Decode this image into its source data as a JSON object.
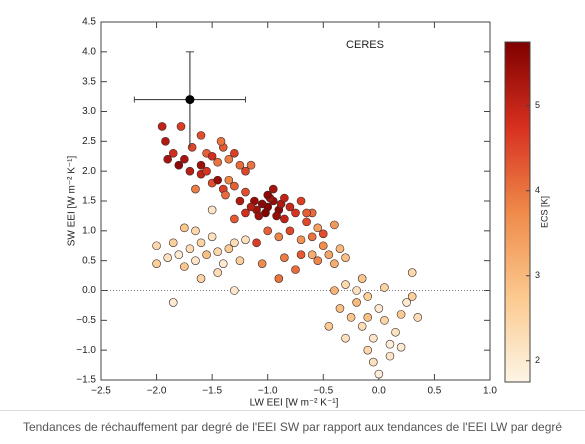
{
  "chart_data": {
    "type": "scatter",
    "title": "CERES",
    "x_label": "LW EEI [W m⁻² K⁻¹]",
    "y_label": "SW EEI [W m⁻² K⁻¹]",
    "colorbar_label": "ECS [K]",
    "caption": "Tendances de réchauffement par degré de l'EEI SW par rapport aux tendances de l'EEI LW par degré",
    "xlim": [
      -2.5,
      1.0
    ],
    "ylim": [
      -1.5,
      4.5
    ],
    "xticks": [
      {
        "value": -2.5,
        "label": "−2.5"
      },
      {
        "value": -2.0,
        "label": "−2.0"
      },
      {
        "value": -1.5,
        "label": "−1.5"
      },
      {
        "value": -1.0,
        "label": "−1.0"
      },
      {
        "value": -0.5,
        "label": "−0.5"
      },
      {
        "value": 0,
        "label": "0.0"
      },
      {
        "value": 0.5,
        "label": "0.5"
      },
      {
        "value": 1.0,
        "label": "1.0"
      }
    ],
    "yticks": [
      {
        "value": -1.5,
        "label": "−1.5"
      },
      {
        "value": -1.0,
        "label": "−1.0"
      },
      {
        "value": -0.5,
        "label": "−0.5"
      },
      {
        "value": 0,
        "label": "0.0"
      },
      {
        "value": 0.5,
        "label": "0.5"
      },
      {
        "value": 1.0,
        "label": "1.0"
      },
      {
        "value": 1.5,
        "label": "1.5"
      },
      {
        "value": 2.0,
        "label": "2.0"
      },
      {
        "value": 2.5,
        "label": "2.5"
      },
      {
        "value": 3.0,
        "label": "3.0"
      },
      {
        "value": 3.5,
        "label": "3.5"
      },
      {
        "value": 4.0,
        "label": "4.0"
      },
      {
        "value": 4.5,
        "label": "4.5"
      }
    ],
    "reference_line": 0,
    "clim": [
      1.75,
      5.75
    ],
    "cticks": [
      2,
      3,
      4,
      5
    ],
    "colormap": [
      "#fdf5e6",
      "#fbc98e",
      "#ef8a4a",
      "#d7301f",
      "#7f0000"
    ],
    "x": [
      -1.95,
      -1.78,
      -1.92,
      -1.85,
      -1.75,
      -1.68,
      -1.6,
      -1.55,
      -1.5,
      -1.45,
      -1.4,
      -1.35,
      -1.3,
      -1.25,
      -1.6,
      -1.5,
      -1.45,
      -1.4,
      -1.35,
      -1.3,
      -1.7,
      -1.8,
      -1.55,
      -1.2,
      -1.15,
      -1.65,
      -1.38,
      -1.9,
      -1.42,
      -1.6,
      -1.05,
      -1.0,
      -0.95,
      -1.1,
      -0.9,
      -1.02,
      -0.98,
      -1.12,
      -0.88,
      -1.0,
      -1.08,
      -0.92,
      -0.85,
      -1.15,
      -0.8,
      -0.75,
      -1.2,
      -1.25,
      -0.7,
      -0.95,
      -1.2,
      -0.65,
      -0.85,
      -1.3,
      -0.6,
      -1.0,
      -0.9,
      -0.8,
      -0.7,
      -0.6,
      -0.55,
      -0.5,
      -0.45,
      -0.7,
      -0.85,
      -0.6,
      -0.5,
      -0.4,
      -1.1,
      -0.75,
      -0.35,
      -0.4,
      -0.55,
      -0.9,
      -1.05,
      -0.65,
      -0.3,
      -2.0,
      -1.9,
      -1.85,
      -1.8,
      -1.75,
      -1.7,
      -1.65,
      -1.6,
      -1.55,
      -1.5,
      -1.45,
      -1.4,
      -1.35,
      -1.3,
      -1.25,
      -1.5,
      -1.65,
      -1.75,
      -1.2,
      -1.6,
      -1.3,
      -1.85,
      -2.0,
      -1.45,
      -0.3,
      -0.2,
      -0.1,
      0.0,
      -0.25,
      -0.15,
      -0.05,
      0.05,
      0.1,
      -0.1,
      0.15,
      0.2,
      0.25,
      0.3,
      -0.05,
      0.0,
      -0.2,
      -0.35,
      -0.4,
      0.35,
      0.1,
      -0.15,
      0.05,
      -0.45,
      0.3,
      -0.3,
      0.2,
      -0.1
    ],
    "values": [
      2.75,
      2.75,
      2.5,
      2.3,
      2.2,
      2.4,
      2.1,
      2.3,
      2.25,
      2.15,
      2.4,
      2.2,
      2.3,
      2.1,
      1.95,
      1.8,
      1.85,
      1.7,
      1.85,
      1.75,
      2.0,
      2.1,
      2.0,
      2.0,
      2.1,
      1.7,
      1.6,
      2.2,
      2.5,
      2.6,
      1.45,
      1.4,
      1.5,
      1.35,
      1.35,
      1.3,
      1.55,
      1.5,
      1.45,
      1.6,
      1.25,
      1.25,
      1.55,
      1.4,
      1.4,
      1.3,
      1.3,
      1.5,
      1.5,
      1.7,
      1.65,
      1.15,
      1.2,
      1.2,
      1.3,
      1.0,
      0.9,
      1.0,
      0.85,
      0.9,
      1.05,
      0.75,
      0.6,
      0.6,
      0.55,
      0.6,
      0.95,
      1.1,
      0.8,
      0.35,
      0.7,
      0.45,
      0.5,
      0.2,
      0.45,
      1.3,
      0.55,
      0.75,
      0.55,
      0.8,
      0.6,
      0.4,
      0.7,
      0.5,
      0.8,
      0.6,
      0.9,
      0.65,
      0.45,
      0.7,
      0.8,
      0.5,
      1.35,
      1.0,
      1.05,
      0.85,
      0.2,
      0.0,
      -0.2,
      0.45,
      0.3,
      0.1,
      0.0,
      -0.1,
      -0.3,
      -0.45,
      -0.6,
      -0.8,
      -0.5,
      -0.9,
      -1.0,
      -0.7,
      -0.4,
      -0.2,
      -0.1,
      -1.2,
      -1.4,
      -0.2,
      -0.3,
      0.0,
      -0.45,
      -1.1,
      0.2,
      0.05,
      -0.6,
      0.3,
      -0.8,
      -0.95,
      -0.45
    ],
    "color_values": [
      5.0,
      4.6,
      5.2,
      4.8,
      5.3,
      4.5,
      5.4,
      4.2,
      4.8,
      4.0,
      4.3,
      3.9,
      4.6,
      4.1,
      5.0,
      4.4,
      5.5,
      4.6,
      3.8,
      4.2,
      5.1,
      5.6,
      4.7,
      4.5,
      4.0,
      3.9,
      4.1,
      5.3,
      4.0,
      4.4,
      5.6,
      5.7,
      5.5,
      5.4,
      5.6,
      5.7,
      5.3,
      5.5,
      5.2,
      5.6,
      5.4,
      5.5,
      5.0,
      5.1,
      4.9,
      4.7,
      4.8,
      5.2,
      4.6,
      5.3,
      4.4,
      4.5,
      5.0,
      4.3,
      4.1,
      4.2,
      3.8,
      4.5,
      3.6,
      4.0,
      3.4,
      3.7,
      3.3,
      4.3,
      3.9,
      3.2,
      4.4,
      3.5,
      4.6,
      4.1,
      3.0,
      3.2,
      3.8,
      4.0,
      3.7,
      4.2,
      2.9,
      2.4,
      2.2,
      2.6,
      2.0,
      2.8,
      2.3,
      2.1,
      2.5,
      2.9,
      2.2,
      2.4,
      2.0,
      2.7,
      2.3,
      2.6,
      2.1,
      2.4,
      2.8,
      2.2,
      2.5,
      2.1,
      2.0,
      2.6,
      2.3,
      2.4,
      2.2,
      2.6,
      2.0,
      2.8,
      2.3,
      2.1,
      2.5,
      1.9,
      2.4,
      2.2,
      2.7,
      2.0,
      2.6,
      2.2,
      1.9,
      3.0,
      2.9,
      3.1,
      2.3,
      2.1,
      2.8,
      2.5,
      2.7,
      2.4,
      2.2,
      2.0,
      2.9
    ],
    "highlight": {
      "x": -1.7,
      "y": 3.2,
      "xerr": 0.5,
      "yerr": 0.8,
      "color": "#000000"
    }
  }
}
